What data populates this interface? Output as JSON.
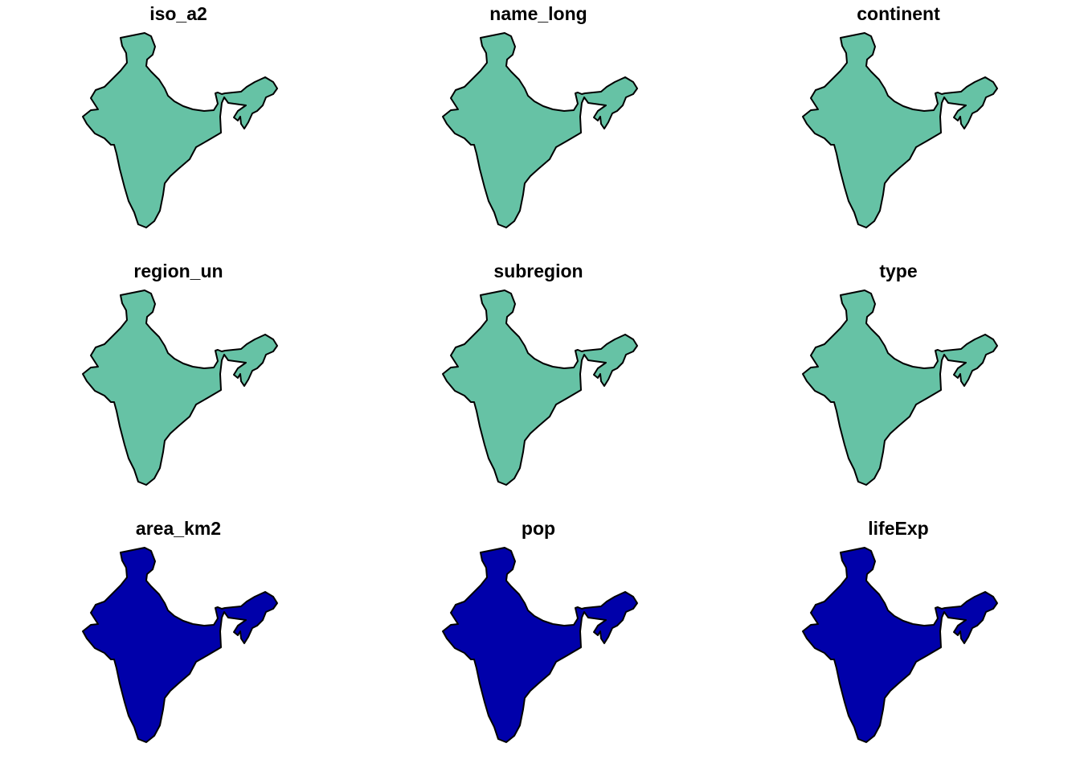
{
  "figure": {
    "layout": "3x3 small-multiple map panels",
    "feature": "India"
  },
  "panels": [
    {
      "title": "iso_a2",
      "fill": "#66C2A5"
    },
    {
      "title": "name_long",
      "fill": "#66C2A5"
    },
    {
      "title": "continent",
      "fill": "#66C2A5"
    },
    {
      "title": "region_un",
      "fill": "#66C2A5"
    },
    {
      "title": "subregion",
      "fill": "#66C2A5"
    },
    {
      "title": "type",
      "fill": "#66C2A5"
    },
    {
      "title": "area_km2",
      "fill": "#0000AA"
    },
    {
      "title": "pop",
      "fill": "#0000AA"
    },
    {
      "title": "lifeExp",
      "fill": "#0000AA"
    }
  ],
  "colors": {
    "categorical_fill": "#66C2A5",
    "numeric_fill": "#0000AA",
    "outline": "#000000",
    "background": "#FFFFFF"
  }
}
